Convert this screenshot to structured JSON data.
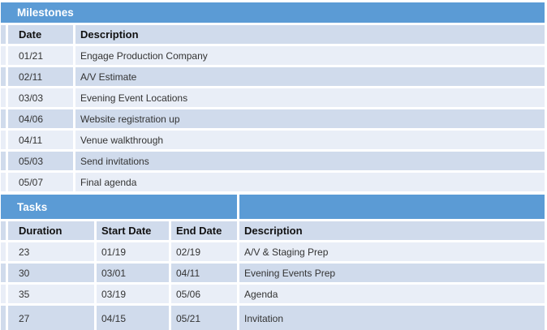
{
  "colors": {
    "header_blue": "#5B9BD5",
    "band_dark": "#D0DBEC",
    "band_light": "#E9EEF7",
    "title_text": "#FFFFFF",
    "header_text": "#111111",
    "body_text": "#333333",
    "background": "#FFFFFF"
  },
  "milestones": {
    "title": "Milestones",
    "columns": {
      "date": "Date",
      "description": "Description"
    },
    "rows": [
      {
        "date": "01/21",
        "description": "Engage Production Company"
      },
      {
        "date": "02/11",
        "description": "A/V Estimate"
      },
      {
        "date": "03/03",
        "description": "Evening Event Locations"
      },
      {
        "date": "04/06",
        "description": "Website registration up"
      },
      {
        "date": "04/11",
        "description": "Venue walkthrough"
      },
      {
        "date": "05/03",
        "description": "Send invitations"
      },
      {
        "date": "05/07",
        "description": "Final agenda"
      }
    ]
  },
  "tasks": {
    "title": "Tasks",
    "columns": {
      "duration": "Duration",
      "start_date": "Start Date",
      "end_date": "End Date",
      "description": "Description"
    },
    "rows": [
      {
        "duration": "23",
        "start_date": "01/19",
        "end_date": "02/19",
        "description": "A/V & Staging Prep"
      },
      {
        "duration": "30",
        "start_date": "03/01",
        "end_date": "04/11",
        "description": "Evening Events Prep"
      },
      {
        "duration": "35",
        "start_date": "03/19",
        "end_date": "05/06",
        "description": "Agenda"
      },
      {
        "duration": "27",
        "start_date": "04/15",
        "end_date": "05/21",
        "description": "Invitation"
      }
    ]
  }
}
